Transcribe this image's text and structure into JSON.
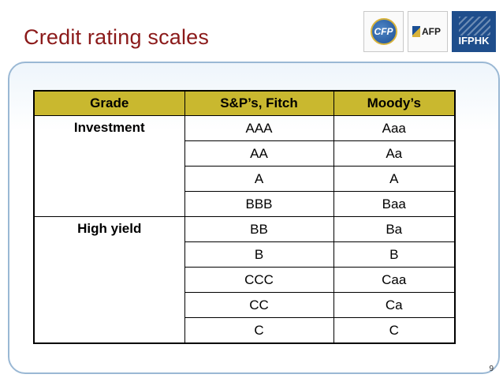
{
  "slide": {
    "title": "Credit rating scales",
    "page_number": "9"
  },
  "logos": {
    "cfp": "CFP",
    "afp": "AFP",
    "ifphk": "IFPHK"
  },
  "table": {
    "headers": [
      "Grade",
      "S&P’s, Fitch",
      "Moody’s"
    ],
    "groups": [
      {
        "grade": "Investment",
        "rows": [
          [
            "AAA",
            "Aaa"
          ],
          [
            "AA",
            "Aa"
          ],
          [
            "A",
            "A"
          ],
          [
            "BBB",
            "Baa"
          ]
        ]
      },
      {
        "grade": "High yield",
        "rows": [
          [
            "BB",
            "Ba"
          ],
          [
            "B",
            "B"
          ],
          [
            "CCC",
            "Caa"
          ],
          [
            "CC",
            "Ca"
          ],
          [
            "C",
            "C"
          ]
        ]
      }
    ],
    "header_color": "#c9b82f"
  }
}
